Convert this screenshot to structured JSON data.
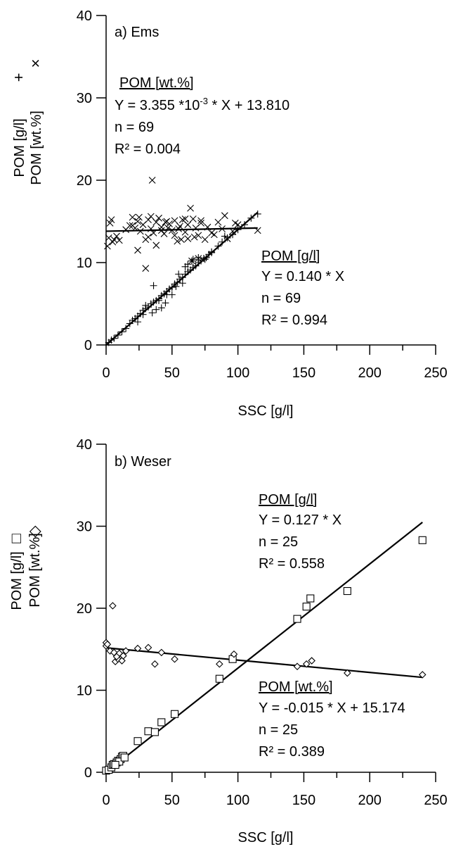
{
  "chart_data": [
    {
      "type": "scatter",
      "panel_label": "a) Ems",
      "xlabel": "SSC [g/l]",
      "ylabel_line1": "POM [g/l]",
      "ylabel_line2": "POM [wt.%]",
      "ylabel_marker1": "+",
      "ylabel_marker2": "×",
      "xlim": [
        0,
        250
      ],
      "ylim": [
        0,
        40
      ],
      "xticks": [
        0,
        50,
        100,
        150,
        200,
        250
      ],
      "yticks": [
        0,
        10,
        20,
        30,
        40
      ],
      "x_minor_ticks": [
        25,
        75,
        125,
        175,
        225
      ],
      "grid": false,
      "series": [
        {
          "name": "POM [g/l]",
          "marker": "plus",
          "points": [
            [
              0,
              0
            ],
            [
              2,
              0.3
            ],
            [
              4,
              0.6
            ],
            [
              6,
              0.8
            ],
            [
              9,
              1.2
            ],
            [
              12,
              1.6
            ],
            [
              15,
              2
            ],
            [
              18,
              2.6
            ],
            [
              20,
              3
            ],
            [
              22,
              3.2
            ],
            [
              24,
              3.5
            ],
            [
              26,
              3.8
            ],
            [
              28,
              4.2
            ],
            [
              30,
              4.4
            ],
            [
              32,
              4.6
            ],
            [
              34,
              5
            ],
            [
              36,
              5.2
            ],
            [
              38,
              5.4
            ],
            [
              40,
              5.6
            ],
            [
              42,
              6
            ],
            [
              44,
              6.2
            ],
            [
              46,
              6.5
            ],
            [
              48,
              6.8
            ],
            [
              50,
              7
            ],
            [
              52,
              7.4
            ],
            [
              54,
              7.6
            ],
            [
              56,
              8
            ],
            [
              58,
              8.2
            ],
            [
              60,
              8.6
            ],
            [
              62,
              8.9
            ],
            [
              64,
              9.1
            ],
            [
              66,
              9.4
            ],
            [
              68,
              9.6
            ],
            [
              70,
              10
            ],
            [
              72,
              10.2
            ],
            [
              74,
              10.5
            ],
            [
              76,
              10.6
            ],
            [
              78,
              11
            ],
            [
              80,
              11.2
            ],
            [
              85,
              12
            ],
            [
              88,
              12.5
            ],
            [
              92,
              13
            ],
            [
              96,
              13.4
            ],
            [
              100,
              14
            ],
            [
              105,
              14.6
            ],
            [
              110,
              15.4
            ],
            [
              115,
              15.9
            ],
            [
              36,
              7.2
            ],
            [
              42,
              4.5
            ],
            [
              30,
              4.8
            ],
            [
              24,
              2.8
            ],
            [
              55,
              8.6
            ],
            [
              65,
              10.2
            ],
            [
              45,
              5.1
            ],
            [
              50,
              6.1
            ],
            [
              35,
              3.9
            ],
            [
              60,
              9.5
            ],
            [
              70,
              10.6
            ],
            [
              80,
              11.3
            ],
            [
              75,
              10.4
            ],
            [
              66,
              10.4
            ],
            [
              38,
              4.3
            ],
            [
              46,
              6.1
            ],
            [
              53,
              7.1
            ],
            [
              58,
              7.5
            ],
            [
              62,
              9.8
            ],
            [
              28,
              3.7
            ],
            [
              40,
              5.4
            ],
            [
              90,
              13.2
            ]
          ]
        },
        {
          "name": "POM [wt.%]",
          "marker": "cross",
          "points": [
            [
              1,
              12
            ],
            [
              2,
              13
            ],
            [
              3,
              14.8
            ],
            [
              4,
              15.2
            ],
            [
              5,
              12.5
            ],
            [
              6,
              12.8
            ],
            [
              8,
              13.2
            ],
            [
              10,
              12.7
            ],
            [
              15,
              14
            ],
            [
              18,
              14.5
            ],
            [
              20,
              15.5
            ],
            [
              22,
              14.2
            ],
            [
              24,
              15
            ],
            [
              26,
              13.8
            ],
            [
              28,
              14.6
            ],
            [
              30,
              12.8
            ],
            [
              32,
              15.2
            ],
            [
              34,
              14.1
            ],
            [
              35,
              20
            ],
            [
              36,
              13.6
            ],
            [
              38,
              14.9
            ],
            [
              40,
              15.4
            ],
            [
              42,
              14.3
            ],
            [
              44,
              13.5
            ],
            [
              46,
              15
            ],
            [
              48,
              14.7
            ],
            [
              50,
              13.9
            ],
            [
              52,
              15.1
            ],
            [
              54,
              12.6
            ],
            [
              56,
              14.4
            ],
            [
              58,
              15.2
            ],
            [
              60,
              13.7
            ],
            [
              62,
              12.9
            ],
            [
              64,
              16.6
            ],
            [
              66,
              15.3
            ],
            [
              68,
              14.2
            ],
            [
              70,
              13.3
            ],
            [
              72,
              14.8
            ],
            [
              75,
              12.8
            ],
            [
              80,
              13.6
            ],
            [
              85,
              14.9
            ],
            [
              88,
              14.1
            ],
            [
              90,
              15.7
            ],
            [
              96,
              13.8
            ],
            [
              100,
              14.6
            ],
            [
              115,
              13.9
            ],
            [
              25,
              15.5
            ],
            [
              30,
              9.3
            ],
            [
              38,
              12.1
            ],
            [
              45,
              14.9
            ],
            [
              55,
              14.1
            ],
            [
              60,
              15.3
            ],
            [
              65,
              10.2
            ],
            [
              70,
              10.5
            ],
            [
              20,
              14.5
            ],
            [
              32,
              13.1
            ],
            [
              42,
              13.9
            ],
            [
              47,
              14.2
            ],
            [
              52,
              13.3
            ],
            [
              57,
              12.8
            ],
            [
              62,
              14.6
            ],
            [
              67,
              13.1
            ],
            [
              72,
              15.1
            ],
            [
              77,
              14.3
            ],
            [
              82,
              13.4
            ],
            [
              92,
              12.9
            ],
            [
              98,
              14.8
            ],
            [
              24,
              11.5
            ],
            [
              34,
              15.6
            ]
          ]
        }
      ],
      "fits": [
        {
          "series": "POM [wt.%]",
          "x": [
            0,
            115
          ],
          "y": [
            13.81,
            14.196
          ]
        },
        {
          "series": "POM [g/l]",
          "x": [
            0,
            115
          ],
          "y": [
            0,
            16.1
          ]
        }
      ],
      "annotations": [
        {
          "title": "POM [wt.%]",
          "eq_main": "Y = 3.355 *10",
          "eq_sup": "-3",
          "eq_tail": " * X  + 13.810",
          "n": "n = 69",
          "r2": "R² = 0.004"
        },
        {
          "title": "POM [g/l]",
          "eq": "Y = 0.140 * X",
          "n": "n = 69",
          "r2": "R² = 0.994"
        }
      ]
    },
    {
      "type": "scatter",
      "panel_label": "b) Weser",
      "xlabel": "SSC [g/l]",
      "ylabel_line1": "POM [g/l]",
      "ylabel_line2": "POM [wt.%]",
      "ylabel_marker1": "□",
      "ylabel_marker2": "◇",
      "xlim": [
        0,
        250
      ],
      "ylim": [
        0,
        40
      ],
      "xticks": [
        0,
        50,
        100,
        150,
        200,
        250
      ],
      "yticks": [
        0,
        10,
        20,
        30,
        40
      ],
      "x_minor_ticks": [
        25,
        75,
        125,
        175,
        225
      ],
      "grid": false,
      "series": [
        {
          "name": "POM [g/l]",
          "marker": "square",
          "points": [
            [
              0,
              0.2
            ],
            [
              2,
              0.3
            ],
            [
              4,
              0.6
            ],
            [
              5,
              0.9
            ],
            [
              6,
              1
            ],
            [
              8,
              1.2
            ],
            [
              9,
              1.4
            ],
            [
              11,
              1.6
            ],
            [
              12,
              1.9
            ],
            [
              13,
              2
            ],
            [
              24,
              3.8
            ],
            [
              32,
              5
            ],
            [
              37,
              4.9
            ],
            [
              42,
              6.1
            ],
            [
              52,
              7.1
            ],
            [
              86,
              11.4
            ],
            [
              96,
              13.8
            ],
            [
              145,
              18.7
            ],
            [
              152,
              20.2
            ],
            [
              155,
              21.2
            ],
            [
              183,
              22.1
            ],
            [
              240,
              28.3
            ],
            [
              10,
              1.3
            ],
            [
              14,
              1.8
            ],
            [
              7,
              0.9
            ]
          ]
        },
        {
          "name": "POM [wt.%]",
          "marker": "diamond",
          "points": [
            [
              0,
              15.4
            ],
            [
              0,
              15.8
            ],
            [
              1,
              15.6
            ],
            [
              3,
              14.8
            ],
            [
              5,
              20.3
            ],
            [
              6,
              14.6
            ],
            [
              7,
              13.5
            ],
            [
              9,
              13.8
            ],
            [
              10,
              14.5
            ],
            [
              12,
              13.6
            ],
            [
              13,
              14.2
            ],
            [
              15,
              14.8
            ],
            [
              24,
              15.1
            ],
            [
              32,
              15.2
            ],
            [
              37,
              13.2
            ],
            [
              42,
              14.6
            ],
            [
              52,
              13.8
            ],
            [
              86,
              13.2
            ],
            [
              97,
              14.4
            ],
            [
              145,
              12.9
            ],
            [
              152,
              13.2
            ],
            [
              156,
              13.6
            ],
            [
              183,
              12.1
            ],
            [
              240,
              11.9
            ],
            [
              8,
              14.1
            ]
          ]
        }
      ],
      "fits": [
        {
          "series": "POM [g/l]",
          "x": [
            0,
            240
          ],
          "y": [
            0,
            30.48
          ]
        },
        {
          "series": "POM [wt.%]",
          "x": [
            0,
            240
          ],
          "y": [
            15.174,
            11.574
          ]
        }
      ],
      "annotations": [
        {
          "title": "POM [g/l]",
          "eq": "Y = 0.127 * X",
          "n": "n = 25",
          "r2": "R² = 0.558"
        },
        {
          "title": "POM [wt.%]",
          "eq": "Y = -0.015 * X + 15.174",
          "n": "n = 25",
          "r2": "R² = 0.389"
        }
      ]
    }
  ]
}
